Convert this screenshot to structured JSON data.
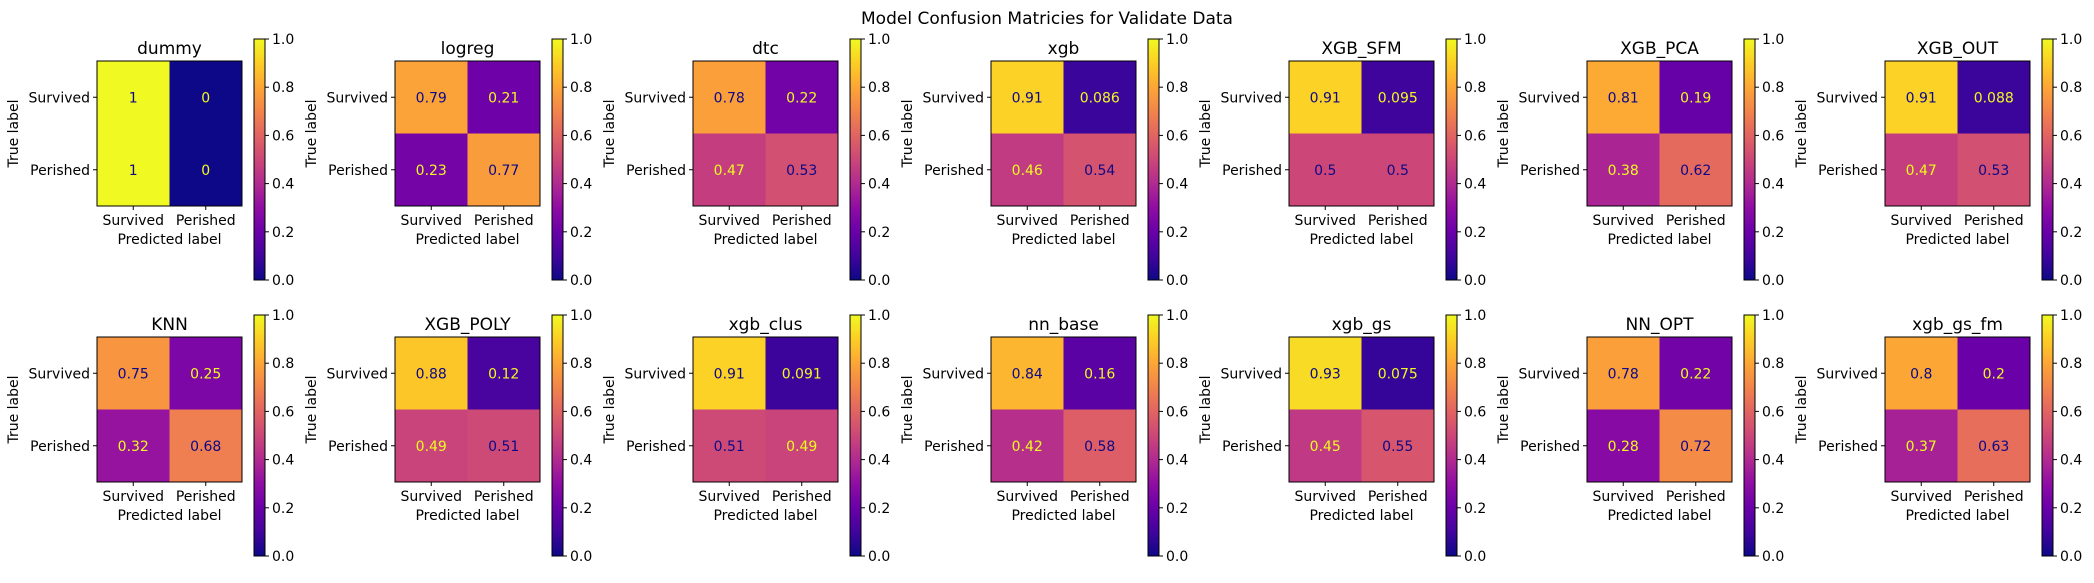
{
  "figure": {
    "suptitle": "Model Confusion Matricies for Validate Data"
  },
  "chart_data": {
    "type": "heatmap",
    "colormap": "plasma",
    "colorbar": {
      "range": [
        0.0,
        1.0
      ],
      "ticks": [
        "0.0",
        "0.2",
        "0.4",
        "0.6",
        "0.8",
        "1.0"
      ]
    },
    "tick_labels": [
      "Survived",
      "Perished"
    ],
    "xlabel": "Predicted label",
    "ylabel": "True label",
    "matrices": [
      {
        "title": "dummy",
        "values": [
          [
            1,
            0
          ],
          [
            1,
            0
          ]
        ],
        "labels": [
          [
            "1",
            "0"
          ],
          [
            "1",
            "0"
          ]
        ]
      },
      {
        "title": "logreg",
        "values": [
          [
            0.79,
            0.21
          ],
          [
            0.23,
            0.77
          ]
        ],
        "labels": [
          [
            "0.79",
            "0.21"
          ],
          [
            "0.23",
            "0.77"
          ]
        ]
      },
      {
        "title": "dtc",
        "values": [
          [
            0.78,
            0.22
          ],
          [
            0.47,
            0.53
          ]
        ],
        "labels": [
          [
            "0.78",
            "0.22"
          ],
          [
            "0.47",
            "0.53"
          ]
        ]
      },
      {
        "title": "xgb",
        "values": [
          [
            0.91,
            0.086
          ],
          [
            0.46,
            0.54
          ]
        ],
        "labels": [
          [
            "0.91",
            "0.086"
          ],
          [
            "0.46",
            "0.54"
          ]
        ]
      },
      {
        "title": "XGB_SFM",
        "values": [
          [
            0.91,
            0.095
          ],
          [
            0.5,
            0.5
          ]
        ],
        "labels": [
          [
            "0.91",
            "0.095"
          ],
          [
            "0.5",
            "0.5"
          ]
        ]
      },
      {
        "title": "XGB_PCA",
        "values": [
          [
            0.81,
            0.19
          ],
          [
            0.38,
            0.62
          ]
        ],
        "labels": [
          [
            "0.81",
            "0.19"
          ],
          [
            "0.38",
            "0.62"
          ]
        ]
      },
      {
        "title": "XGB_OUT",
        "values": [
          [
            0.91,
            0.088
          ],
          [
            0.47,
            0.53
          ]
        ],
        "labels": [
          [
            "0.91",
            "0.088"
          ],
          [
            "0.47",
            "0.53"
          ]
        ]
      },
      {
        "title": "KNN",
        "values": [
          [
            0.75,
            0.25
          ],
          [
            0.32,
            0.68
          ]
        ],
        "labels": [
          [
            "0.75",
            "0.25"
          ],
          [
            "0.32",
            "0.68"
          ]
        ]
      },
      {
        "title": "XGB_POLY",
        "values": [
          [
            0.88,
            0.12
          ],
          [
            0.49,
            0.51
          ]
        ],
        "labels": [
          [
            "0.88",
            "0.12"
          ],
          [
            "0.49",
            "0.51"
          ]
        ]
      },
      {
        "title": "xgb_clus",
        "values": [
          [
            0.91,
            0.091
          ],
          [
            0.51,
            0.49
          ]
        ],
        "labels": [
          [
            "0.91",
            "0.091"
          ],
          [
            "0.51",
            "0.49"
          ]
        ]
      },
      {
        "title": "nn_base",
        "values": [
          [
            0.84,
            0.16
          ],
          [
            0.42,
            0.58
          ]
        ],
        "labels": [
          [
            "0.84",
            "0.16"
          ],
          [
            "0.42",
            "0.58"
          ]
        ]
      },
      {
        "title": "xgb_gs",
        "values": [
          [
            0.93,
            0.075
          ],
          [
            0.45,
            0.55
          ]
        ],
        "labels": [
          [
            "0.93",
            "0.075"
          ],
          [
            "0.45",
            "0.55"
          ]
        ]
      },
      {
        "title": "NN_OPT",
        "values": [
          [
            0.78,
            0.22
          ],
          [
            0.28,
            0.72
          ]
        ],
        "labels": [
          [
            "0.78",
            "0.22"
          ],
          [
            "0.28",
            "0.72"
          ]
        ]
      },
      {
        "title": "xgb_gs_fm",
        "values": [
          [
            0.8,
            0.2
          ],
          [
            0.37,
            0.63
          ]
        ],
        "labels": [
          [
            "0.8",
            "0.2"
          ],
          [
            "0.37",
            "0.63"
          ]
        ]
      }
    ]
  }
}
